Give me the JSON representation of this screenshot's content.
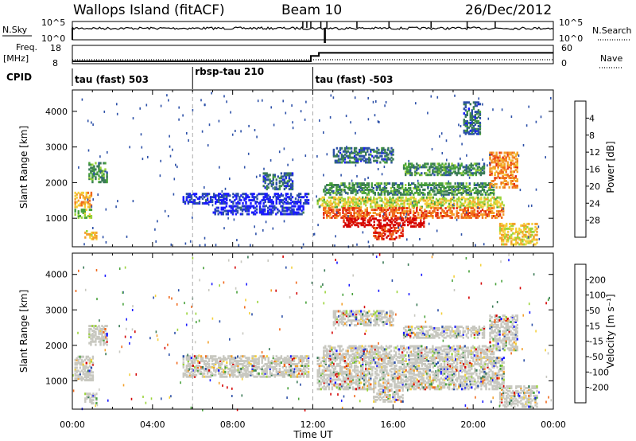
{
  "header": {
    "station": "Wallops Island (fitACF)",
    "beam": "Beam 10",
    "date": "26/Dec/2012"
  },
  "noise_panel": {
    "left_label": "N.Sky",
    "left_ticks": [
      "10^5",
      "10^0"
    ],
    "right_ticks": [
      "10^5",
      "10^0"
    ],
    "right_label": "N.Search"
  },
  "freq_panel": {
    "left_label_top": "Freq.",
    "left_label_bottom": "[MHz]",
    "left_ticks": [
      "18",
      "8"
    ],
    "right_ticks": [
      "60",
      "0"
    ],
    "right_label": "Nave",
    "freq_series": {
      "x": [
        0,
        11.9,
        11.9,
        12.3,
        12.3,
        24
      ],
      "y": [
        10.6,
        10.6,
        13.5,
        13.5,
        15.2,
        15.2
      ]
    },
    "nave_series": {
      "x": [
        0,
        24
      ],
      "y": [
        8,
        8
      ]
    }
  },
  "cpid_panel": {
    "label": "CPID",
    "modes": [
      {
        "label": "tau (fast) 503",
        "start": 0.0,
        "end": 6.0
      },
      {
        "label": "rbsp-tau 210",
        "start": 6.0,
        "end": 12.0
      },
      {
        "label": "tau (fast) -503",
        "start": 12.0,
        "end": 24.0
      }
    ]
  },
  "chart_data": [
    {
      "type": "heatmap",
      "ylabel": "Slant Range [km]",
      "xlim": [
        0,
        24
      ],
      "ylim": [
        200,
        4600
      ],
      "yticks": [
        "1000",
        "2000",
        "3000",
        "4000"
      ],
      "colorbar": {
        "label": "Power [dB]",
        "ticks": [
          "4",
          "8",
          "12",
          "16",
          "20",
          "24",
          "28"
        ],
        "colors": [
          "#1a1aff",
          "#2c50a8",
          "#3a7a56",
          "#49a23c",
          "#9bd43a",
          "#f4d03a",
          "#f3a02b",
          "#f0691c",
          "#e22a10",
          "#d40000"
        ]
      },
      "regions": [
        {
          "t0": 0.1,
          "t1": 0.9,
          "r0": 1350,
          "r1": 1750,
          "v": 0.62
        },
        {
          "t0": 0.1,
          "t1": 0.9,
          "r0": 1050,
          "r1": 1300,
          "v": 0.42
        },
        {
          "t0": 0.6,
          "t1": 1.2,
          "r0": 450,
          "r1": 700,
          "v": 0.6
        },
        {
          "t0": 0.8,
          "t1": 1.7,
          "r0": 2050,
          "r1": 2600,
          "v": 0.3
        },
        {
          "t0": 5.5,
          "t1": 11.8,
          "r0": 1450,
          "r1": 1750,
          "v": 0.08
        },
        {
          "t0": 7.0,
          "t1": 11.5,
          "r0": 1150,
          "r1": 1400,
          "v": 0.08
        },
        {
          "t0": 9.5,
          "t1": 11.0,
          "r0": 1850,
          "r1": 2300,
          "v": 0.2
        },
        {
          "t0": 12.2,
          "t1": 21.5,
          "r0": 1350,
          "r1": 1650,
          "v": 0.5
        },
        {
          "t0": 12.5,
          "t1": 21.5,
          "r0": 1050,
          "r1": 1350,
          "v": 0.75
        },
        {
          "t0": 13.5,
          "t1": 17.5,
          "r0": 800,
          "r1": 1050,
          "v": 0.95
        },
        {
          "t0": 15.0,
          "t1": 16.5,
          "r0": 450,
          "r1": 800,
          "v": 0.85
        },
        {
          "t0": 12.5,
          "t1": 21.0,
          "r0": 1700,
          "r1": 2050,
          "v": 0.3
        },
        {
          "t0": 13.0,
          "t1": 16.0,
          "r0": 2600,
          "r1": 3000,
          "v": 0.2
        },
        {
          "t0": 16.5,
          "t1": 20.5,
          "r0": 2250,
          "r1": 2600,
          "v": 0.3
        },
        {
          "t0": 19.5,
          "t1": 20.3,
          "r0": 3400,
          "r1": 4300,
          "v": 0.2
        },
        {
          "t0": 20.8,
          "t1": 22.2,
          "r0": 1900,
          "r1": 2900,
          "v": 0.7
        },
        {
          "t0": 21.3,
          "t1": 23.2,
          "r0": 300,
          "r1": 900,
          "v": 0.55
        }
      ]
    },
    {
      "type": "heatmap",
      "ylabel": "Slant Range [km]",
      "xlabel": "Time UT",
      "xlim": [
        0,
        24
      ],
      "ylim": [
        200,
        4600
      ],
      "xticks": [
        "00:00",
        "04:00",
        "08:00",
        "12:00",
        "16:00",
        "20:00",
        "00:00"
      ],
      "yticks": [
        "1000",
        "2000",
        "3000",
        "4000"
      ],
      "colorbar": {
        "label": "Velocity [m s⁻¹]",
        "ticks": [
          "200",
          "100",
          "50",
          "15",
          "-15",
          "-50",
          "-100",
          "-200"
        ],
        "colors": [
          "#1a1aff",
          "#2c50a8",
          "#3a7a56",
          "#49a23c",
          "#9bd43a",
          "#c8c8c0",
          "#f4d03a",
          "#f3a02b",
          "#f0691c",
          "#d40000"
        ]
      },
      "regions": [
        {
          "t0": 0.1,
          "t1": 1.0,
          "r0": 1050,
          "r1": 1750,
          "v": 0.42
        },
        {
          "t0": 0.8,
          "t1": 1.7,
          "r0": 2050,
          "r1": 2600,
          "v": 0.35
        },
        {
          "t0": 0.6,
          "t1": 1.2,
          "r0": 400,
          "r1": 700,
          "v": 0.45
        },
        {
          "t0": 5.5,
          "t1": 11.8,
          "r0": 1150,
          "r1": 1750,
          "v": 0.55
        },
        {
          "t0": 12.2,
          "t1": 21.5,
          "r0": 800,
          "r1": 1700,
          "v": 0.55
        },
        {
          "t0": 15.0,
          "t1": 16.5,
          "r0": 450,
          "r1": 800,
          "v": 0.55
        },
        {
          "t0": 12.5,
          "t1": 21.0,
          "r0": 1700,
          "r1": 2050,
          "v": 0.55
        },
        {
          "t0": 16.5,
          "t1": 20.5,
          "r0": 2250,
          "r1": 2600,
          "v": 0.55
        },
        {
          "t0": 13.0,
          "t1": 16.0,
          "r0": 2600,
          "r1": 3000,
          "v": 0.55
        },
        {
          "t0": 20.8,
          "t1": 22.2,
          "r0": 1900,
          "r1": 2900,
          "v": 0.55
        },
        {
          "t0": 21.3,
          "t1": 23.2,
          "r0": 300,
          "r1": 900,
          "v": 0.42
        }
      ]
    }
  ]
}
